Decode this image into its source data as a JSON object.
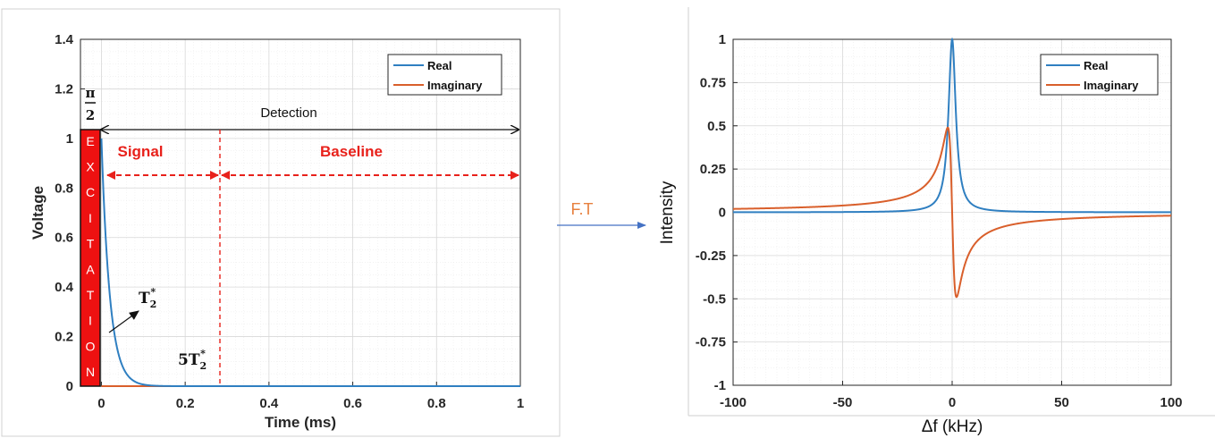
{
  "chart_data": [
    {
      "type": "line",
      "xlabel": "Time (ms)",
      "ylabel": "Voltage",
      "xlim": [
        -0.05,
        1
      ],
      "ylim": [
        0,
        1.4
      ],
      "xticks": [
        "0",
        "0.2",
        "0.4",
        "0.6",
        "0.8",
        "1"
      ],
      "yticks": [
        "0",
        "0.2",
        "0.4",
        "0.6",
        "0.8",
        "1",
        "1.2",
        "1.4"
      ],
      "grid": true,
      "legend_position": "top-right",
      "series": [
        {
          "name": "Real",
          "color": "#2f7fc1",
          "description_values": {
            "x": [
              0,
              0.01,
              0.02,
              0.03,
              0.04,
              0.05,
              0.06,
              0.08,
              0.1,
              1.0
            ],
            "y": [
              1.0,
              0.61,
              0.37,
              0.22,
              0.14,
              0.08,
              0.05,
              0.02,
              0.0,
              0.0
            ]
          }
        },
        {
          "name": "Imaginary",
          "color": "#d95f2b",
          "description_values": {
            "x": [
              0,
              1.0
            ],
            "y": [
              0,
              0
            ]
          }
        }
      ],
      "annotations": {
        "excitation_letters": [
          "E",
          "X",
          "C",
          "I",
          "T",
          "A",
          "T",
          "I",
          "O",
          "N"
        ],
        "pulse_label_num": "π",
        "pulse_label_den": "2",
        "detection": "Detection",
        "signal": "Signal",
        "baseline": "Baseline",
        "t2_label": "T",
        "t2_sub": "2",
        "t2_sup": "*",
        "five_t2_prefix": "5T",
        "five_t2_sub": "2",
        "five_t2_sup": "*"
      }
    },
    {
      "type": "line",
      "xlabel": "Δf (kHz)",
      "ylabel": "Intensity",
      "xlim": [
        -100,
        100
      ],
      "ylim": [
        -1,
        1
      ],
      "xticks": [
        "-100",
        "-50",
        "0",
        "50",
        "100"
      ],
      "yticks": [
        "1",
        "0.75",
        "0.5",
        "0.25",
        "0",
        "-0.25",
        "-0.5",
        "-0.75",
        "-1"
      ],
      "grid": true,
      "legend_position": "top-right",
      "series": [
        {
          "name": "Real",
          "color": "#2f7fc1",
          "peak": {
            "x": 0,
            "y": 1.0
          },
          "halfwidth_khz": 2
        },
        {
          "name": "Imaginary",
          "color": "#d95f2b",
          "max": {
            "x": -2,
            "y": 0.49
          },
          "min": {
            "x": 2,
            "y": -0.49
          }
        }
      ]
    }
  ],
  "arrow_label": "F.T",
  "colors": {
    "real": "#2f7fc1",
    "imag": "#d95f2b",
    "excitation": "#ee1111",
    "annotation_red": "#e8211b",
    "ft": "#e7803f"
  }
}
